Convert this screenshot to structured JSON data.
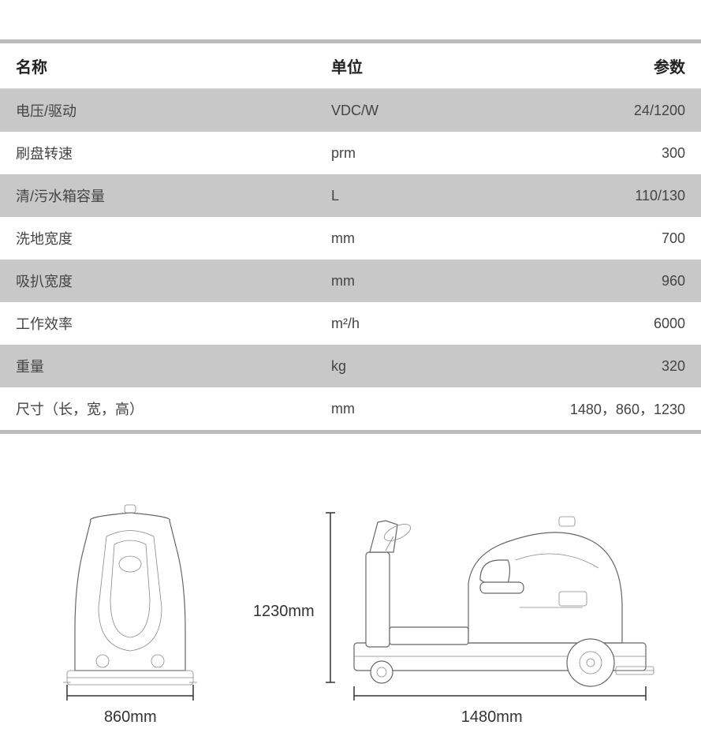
{
  "table": {
    "headers": {
      "name": "名称",
      "unit": "单位",
      "param": "参数"
    },
    "rows": [
      {
        "name": "电压/驱动",
        "unit": "VDC/W",
        "param": "24/1200"
      },
      {
        "name": "刷盘转速",
        "unit": "prm",
        "param": "300"
      },
      {
        "name": "清/污水箱容量",
        "unit": "L",
        "param": "110/130"
      },
      {
        "name": "洗地宽度",
        "unit": "mm",
        "param": "700"
      },
      {
        "name": "吸扒宽度",
        "unit": "mm",
        "param": "960"
      },
      {
        "name": "工作效率",
        "unit": "m²/h",
        "param": "6000"
      },
      {
        "name": "重量",
        "unit": "kg",
        "param": "320"
      },
      {
        "name": "尺寸（长，宽，高）",
        "unit": "mm",
        "param": "1480，860，1230"
      }
    ],
    "styling": {
      "header_bg": "#ffffff",
      "row_odd_bg": "#c8c8c8",
      "row_even_bg": "#ffffff",
      "border_color": "#bbbbbb",
      "header_font_size": 20,
      "cell_font_size": 18,
      "text_color": "#444444"
    }
  },
  "diagrams": {
    "front": {
      "width_label": "860mm"
    },
    "side": {
      "height_label": "1230mm",
      "length_label": "1480mm"
    },
    "stroke_color": "#666666",
    "label_font_size": 20
  }
}
